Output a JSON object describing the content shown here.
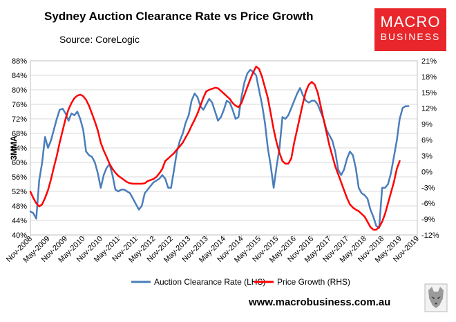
{
  "header": {
    "title": "Sydney Auction Clearance Rate vs Price Growth",
    "source": "Source: CoreLogic",
    "logo_line1": "MACRO",
    "logo_line2": "BUSINESS",
    "website": "www.macrobusiness.com.au"
  },
  "chart_data": {
    "type": "line",
    "title": "Sydney Auction Clearance Rate vs Price Growth",
    "ylabel": "3MMA",
    "ylabel_right": "",
    "xlabel": "",
    "ylim_left": [
      40,
      88
    ],
    "ylim_right": [
      -12,
      21
    ],
    "yticks_left": [
      "40%",
      "44%",
      "48%",
      "52%",
      "56%",
      "60%",
      "64%",
      "68%",
      "72%",
      "76%",
      "80%",
      "84%",
      "88%"
    ],
    "yticks_right": [
      "-12%",
      "-9%",
      "-6%",
      "-3%",
      "0%",
      "3%",
      "6%",
      "9%",
      "12%",
      "15%",
      "18%",
      "21%"
    ],
    "x_start": "Nov-2008",
    "x_end": "Nov-2019",
    "xticks": [
      "Nov-2008",
      "May-2009",
      "Nov-2009",
      "May-2010",
      "Nov-2010",
      "May-2011",
      "Nov-2011",
      "May-2012",
      "Nov-2012",
      "May-2013",
      "Nov-2013",
      "May-2014",
      "Nov-2014",
      "May-2015",
      "Nov-2015",
      "May-2016",
      "Nov-2016",
      "May-2017",
      "Nov-2017",
      "May-2018",
      "Nov-2018",
      "May-2019",
      "Nov-2019"
    ],
    "grid": true,
    "legend_position": "bottom",
    "colors": {
      "clearance": "#4a7ebb",
      "price": "#ff0000"
    },
    "series": [
      {
        "name": "Auction Clearance Rate (LHS)",
        "axis": "left",
        "points": [
          [
            "Nov-2008",
            46.5
          ],
          [
            "Dec-2008",
            46
          ],
          [
            "Jan-2009",
            44.5
          ],
          [
            "Feb-2009",
            55
          ],
          [
            "Mar-2009",
            60
          ],
          [
            "Apr-2009",
            67
          ],
          [
            "May-2009",
            64
          ],
          [
            "Jun-2009",
            66
          ],
          [
            "Jul-2009",
            69
          ],
          [
            "Aug-2009",
            72
          ],
          [
            "Sep-2009",
            74.5
          ],
          [
            "Oct-2009",
            74.8
          ],
          [
            "Nov-2009",
            73.5
          ],
          [
            "Dec-2009",
            71.5
          ],
          [
            "Jan-2010",
            73.5
          ],
          [
            "Feb-2010",
            73
          ],
          [
            "Mar-2010",
            74
          ],
          [
            "Apr-2010",
            72
          ],
          [
            "May-2010",
            69
          ],
          [
            "Jun-2010",
            63
          ],
          [
            "Jul-2010",
            62
          ],
          [
            "Aug-2010",
            61.5
          ],
          [
            "Sep-2010",
            60
          ],
          [
            "Oct-2010",
            57
          ],
          [
            "Nov-2010",
            53
          ],
          [
            "Dec-2010",
            56.5
          ],
          [
            "Jan-2011",
            58.5
          ],
          [
            "Feb-2011",
            59.5
          ],
          [
            "Mar-2011",
            56.5
          ],
          [
            "Apr-2011",
            52.5
          ],
          [
            "May-2011",
            52
          ],
          [
            "Jun-2011",
            52.5
          ],
          [
            "Jul-2011",
            52.5
          ],
          [
            "Aug-2011",
            52
          ],
          [
            "Sep-2011",
            51.5
          ],
          [
            "Oct-2011",
            50
          ],
          [
            "Nov-2011",
            48.5
          ],
          [
            "Dec-2011",
            47
          ],
          [
            "Jan-2012",
            48
          ],
          [
            "Feb-2012",
            51.5
          ],
          [
            "Mar-2012",
            52.5
          ],
          [
            "Apr-2012",
            53.5
          ],
          [
            "May-2012",
            54.5
          ],
          [
            "Jun-2012",
            55
          ],
          [
            "Jul-2012",
            55.5
          ],
          [
            "Aug-2012",
            56.5
          ],
          [
            "Sep-2012",
            55.5
          ],
          [
            "Oct-2012",
            53
          ],
          [
            "Nov-2012",
            53
          ],
          [
            "Dec-2012",
            58
          ],
          [
            "Jan-2013",
            63
          ],
          [
            "Feb-2013",
            66
          ],
          [
            "Mar-2013",
            68
          ],
          [
            "Apr-2013",
            71
          ],
          [
            "May-2013",
            73
          ],
          [
            "Jun-2013",
            77
          ],
          [
            "Jul-2013",
            79
          ],
          [
            "Aug-2013",
            78
          ],
          [
            "Sep-2013",
            75.5
          ],
          [
            "Oct-2013",
            74.5
          ],
          [
            "Nov-2013",
            76
          ],
          [
            "Dec-2013",
            77.5
          ],
          [
            "Jan-2014",
            76.5
          ],
          [
            "Feb-2014",
            74
          ],
          [
            "Mar-2014",
            71.5
          ],
          [
            "Apr-2014",
            72.5
          ],
          [
            "May-2014",
            74.5
          ],
          [
            "Jun-2014",
            77
          ],
          [
            "Jul-2014",
            76.5
          ],
          [
            "Aug-2014",
            74.5
          ],
          [
            "Sep-2014",
            72
          ],
          [
            "Oct-2014",
            72.5
          ],
          [
            "Nov-2014",
            78
          ],
          [
            "Dec-2014",
            82
          ],
          [
            "Jan-2015",
            84.5
          ],
          [
            "Feb-2015",
            85.5
          ],
          [
            "Mar-2015",
            85
          ],
          [
            "Apr-2015",
            84
          ],
          [
            "May-2015",
            80
          ],
          [
            "Jun-2015",
            76
          ],
          [
            "Jul-2015",
            71
          ],
          [
            "Aug-2015",
            64
          ],
          [
            "Sep-2015",
            59
          ],
          [
            "Oct-2015",
            53
          ],
          [
            "Nov-2015",
            59
          ],
          [
            "Dec-2015",
            64
          ],
          [
            "Jan-2016",
            72.5
          ],
          [
            "Feb-2016",
            72
          ],
          [
            "Mar-2016",
            73
          ],
          [
            "Apr-2016",
            75
          ],
          [
            "May-2016",
            77
          ],
          [
            "Jun-2016",
            79
          ],
          [
            "Jul-2016",
            80.5
          ],
          [
            "Aug-2016",
            78.5
          ],
          [
            "Sep-2016",
            77
          ],
          [
            "Oct-2016",
            76.5
          ],
          [
            "Nov-2016",
            77
          ],
          [
            "Dec-2016",
            77
          ],
          [
            "Jan-2017",
            76
          ],
          [
            "Feb-2017",
            74
          ],
          [
            "Mar-2017",
            72
          ],
          [
            "Apr-2017",
            69
          ],
          [
            "May-2017",
            67.5
          ],
          [
            "Jun-2017",
            66
          ],
          [
            "Jul-2017",
            63
          ],
          [
            "Aug-2017",
            58
          ],
          [
            "Sep-2017",
            56.5
          ],
          [
            "Oct-2017",
            58
          ],
          [
            "Nov-2017",
            61
          ],
          [
            "Dec-2017",
            63
          ],
          [
            "Jan-2018",
            62
          ],
          [
            "Feb-2018",
            58.5
          ],
          [
            "Mar-2018",
            53
          ],
          [
            "Apr-2018",
            51.5
          ],
          [
            "May-2018",
            51
          ],
          [
            "Jun-2018",
            50
          ],
          [
            "Jul-2018",
            47
          ],
          [
            "Aug-2018",
            45
          ],
          [
            "Sep-2018",
            42.5
          ],
          [
            "Oct-2018",
            42
          ],
          [
            "Nov-2018",
            53
          ],
          [
            "Dec-2018",
            53
          ],
          [
            "Jan-2019",
            54
          ],
          [
            "Feb-2019",
            57
          ],
          [
            "Mar-2019",
            61.5
          ],
          [
            "Apr-2019",
            66
          ],
          [
            "May-2019",
            72
          ],
          [
            "Jun-2019",
            75
          ],
          [
            "Jul-2019",
            75.5
          ],
          [
            "Aug-2019",
            75.5
          ]
        ]
      },
      {
        "name": "Price Growth (RHS)",
        "axis": "right",
        "points": [
          [
            "Nov-2008",
            -3.8
          ],
          [
            "Dec-2008",
            -5
          ],
          [
            "Jan-2009",
            -6
          ],
          [
            "Feb-2009",
            -6.6
          ],
          [
            "Mar-2009",
            -6.2
          ],
          [
            "Apr-2009",
            -5
          ],
          [
            "May-2009",
            -3.5
          ],
          [
            "Jun-2009",
            -1.5
          ],
          [
            "Jul-2009",
            0.8
          ],
          [
            "Aug-2009",
            3
          ],
          [
            "Sep-2009",
            5.5
          ],
          [
            "Oct-2009",
            7.8
          ],
          [
            "Nov-2009",
            10
          ],
          [
            "Dec-2009",
            11.8
          ],
          [
            "Jan-2010",
            13
          ],
          [
            "Feb-2010",
            13.9
          ],
          [
            "Mar-2010",
            14.4
          ],
          [
            "Apr-2010",
            14.6
          ],
          [
            "May-2010",
            14.3
          ],
          [
            "Jun-2010",
            13.6
          ],
          [
            "Jul-2010",
            12.5
          ],
          [
            "Aug-2010",
            11
          ],
          [
            "Sep-2010",
            9.5
          ],
          [
            "Oct-2010",
            7.8
          ],
          [
            "Nov-2010",
            5.5
          ],
          [
            "Dec-2010",
            4
          ],
          [
            "Jan-2011",
            2.8
          ],
          [
            "Feb-2011",
            1.5
          ],
          [
            "Mar-2011",
            0.5
          ],
          [
            "Apr-2011",
            -0.2
          ],
          [
            "May-2011",
            -0.8
          ],
          [
            "Jun-2011",
            -1.2
          ],
          [
            "Jul-2011",
            -1.6
          ],
          [
            "Aug-2011",
            -2
          ],
          [
            "Sep-2011",
            -2.2
          ],
          [
            "Oct-2011",
            -2.3
          ],
          [
            "Nov-2011",
            -2.3
          ],
          [
            "Dec-2011",
            -2.3
          ],
          [
            "Jan-2012",
            -2.3
          ],
          [
            "Feb-2012",
            -2.2
          ],
          [
            "Mar-2012",
            -1.8
          ],
          [
            "Apr-2012",
            -1.6
          ],
          [
            "May-2012",
            -1.4
          ],
          [
            "Jun-2012",
            -1
          ],
          [
            "Jul-2012",
            -0.3
          ],
          [
            "Aug-2012",
            0.5
          ],
          [
            "Sep-2012",
            2
          ],
          [
            "Oct-2012",
            2.5
          ],
          [
            "Nov-2012",
            3
          ],
          [
            "Dec-2012",
            3.5
          ],
          [
            "Jan-2013",
            4.2
          ],
          [
            "Feb-2013",
            4.8
          ],
          [
            "Mar-2013",
            5.5
          ],
          [
            "Apr-2013",
            6.5
          ],
          [
            "May-2013",
            7.5
          ],
          [
            "Jun-2013",
            8.7
          ],
          [
            "Jul-2013",
            9.8
          ],
          [
            "Aug-2013",
            11
          ],
          [
            "Sep-2013",
            12.5
          ],
          [
            "Oct-2013",
            14
          ],
          [
            "Nov-2013",
            15.2
          ],
          [
            "Dec-2013",
            15.5
          ],
          [
            "Jan-2014",
            15.7
          ],
          [
            "Feb-2014",
            15.9
          ],
          [
            "Mar-2014",
            15.8
          ],
          [
            "Apr-2014",
            15.3
          ],
          [
            "May-2014",
            14.8
          ],
          [
            "Jun-2014",
            14.3
          ],
          [
            "Jul-2014",
            13.8
          ],
          [
            "Aug-2014",
            13
          ],
          [
            "Sep-2014",
            12.5
          ],
          [
            "Oct-2014",
            12.2
          ],
          [
            "Nov-2014",
            13
          ],
          [
            "Dec-2014",
            14.5
          ],
          [
            "Jan-2015",
            16
          ],
          [
            "Feb-2015",
            17.5
          ],
          [
            "Mar-2015",
            18.8
          ],
          [
            "Apr-2015",
            19.9
          ],
          [
            "May-2015",
            19.5
          ],
          [
            "Jun-2015",
            18
          ],
          [
            "Jul-2015",
            16
          ],
          [
            "Aug-2015",
            14
          ],
          [
            "Sep-2015",
            11
          ],
          [
            "Oct-2015",
            8
          ],
          [
            "Nov-2015",
            5.5
          ],
          [
            "Dec-2015",
            3.5
          ],
          [
            "Jan-2016",
            2
          ],
          [
            "Feb-2016",
            1.5
          ],
          [
            "Mar-2016",
            1.5
          ],
          [
            "Apr-2016",
            2.5
          ],
          [
            "May-2016",
            5.5
          ],
          [
            "Jun-2016",
            8
          ],
          [
            "Jul-2016",
            10.5
          ],
          [
            "Aug-2016",
            13
          ],
          [
            "Sep-2016",
            15.2
          ],
          [
            "Oct-2016",
            16.5
          ],
          [
            "Nov-2016",
            17
          ],
          [
            "Dec-2016",
            16.5
          ],
          [
            "Jan-2017",
            15
          ],
          [
            "Feb-2017",
            12.5
          ],
          [
            "Mar-2017",
            10
          ],
          [
            "Apr-2017",
            7.5
          ],
          [
            "May-2017",
            5
          ],
          [
            "Jun-2017",
            3
          ],
          [
            "Jul-2017",
            1
          ],
          [
            "Aug-2017",
            -0.5
          ],
          [
            "Sep-2017",
            -2
          ],
          [
            "Oct-2017",
            -3.5
          ],
          [
            "Nov-2017",
            -5
          ],
          [
            "Dec-2017",
            -6.2
          ],
          [
            "Jan-2018",
            -6.8
          ],
          [
            "Feb-2018",
            -7.2
          ],
          [
            "Mar-2018",
            -7.5
          ],
          [
            "Apr-2018",
            -8
          ],
          [
            "May-2018",
            -8.5
          ],
          [
            "Jun-2018",
            -9.5
          ],
          [
            "Jul-2018",
            -10.5
          ],
          [
            "Aug-2018",
            -11
          ],
          [
            "Sep-2018",
            -11
          ],
          [
            "Oct-2018",
            -10.5
          ],
          [
            "Nov-2018",
            -9.5
          ],
          [
            "Dec-2018",
            -8
          ],
          [
            "Jan-2019",
            -6
          ],
          [
            "Feb-2019",
            -4
          ],
          [
            "Mar-2019",
            -2
          ],
          [
            "Apr-2019",
            0.5
          ],
          [
            "May-2019",
            2
          ]
        ]
      }
    ]
  }
}
